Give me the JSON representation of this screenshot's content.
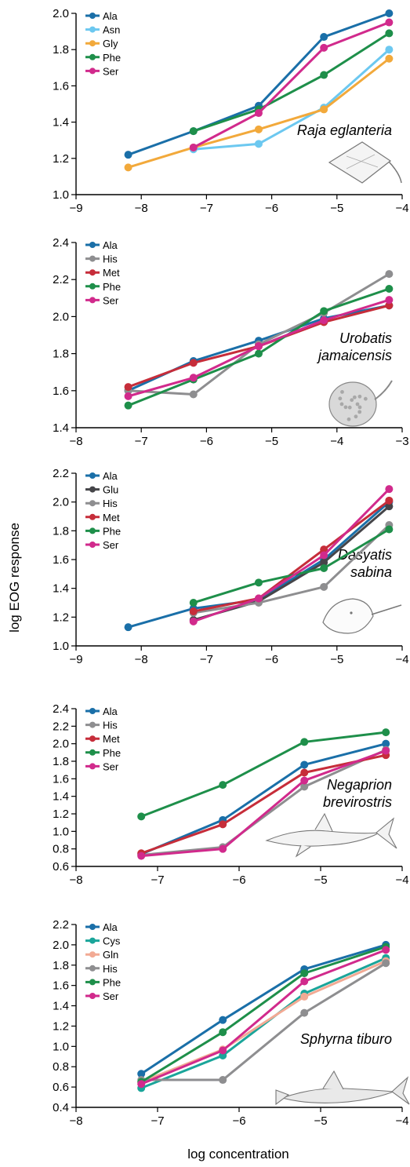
{
  "figure": {
    "ylabel": "log EOG response",
    "xlabel": "log concentration"
  },
  "colors": {
    "Ala": "#1a6fa8",
    "Asn": "#6cc8f0",
    "Gly": "#f2a93b",
    "Phe": "#1e8f4a",
    "Ser": "#d12a8c",
    "His": "#8e8e90",
    "Met": "#c62d3a",
    "Glu": "#454549",
    "Cys": "#1aa59a",
    "Gln": "#f2aa94"
  },
  "chart_data": [
    {
      "type": "line",
      "species": "Raja eglanteria",
      "icon": "skate-icon",
      "xlim": [
        -9,
        -4
      ],
      "ylim": [
        1.0,
        2.0
      ],
      "xticks": [
        "−9",
        "−8",
        "−7",
        "−6",
        "−5",
        "−4"
      ],
      "yticks": [
        "1.0",
        "1.2",
        "1.4",
        "1.6",
        "1.8",
        "2.0"
      ],
      "legend": [
        "Ala",
        "Asn",
        "Gly",
        "Phe",
        "Ser"
      ],
      "series": [
        {
          "name": "Ala",
          "x": [
            -8.2,
            -7.2,
            -6.2,
            -5.2,
            -4.2
          ],
          "y": [
            1.22,
            1.35,
            1.49,
            1.87,
            2.0
          ]
        },
        {
          "name": "Asn",
          "x": [
            -7.2,
            -6.2,
            -5.2,
            -4.2
          ],
          "y": [
            1.25,
            1.28,
            1.48,
            1.8
          ]
        },
        {
          "name": "Gly",
          "x": [
            -8.2,
            -7.2,
            -6.2,
            -5.2,
            -4.2
          ],
          "y": [
            1.15,
            1.26,
            1.36,
            1.47,
            1.75
          ]
        },
        {
          "name": "Phe",
          "x": [
            -7.2,
            -6.2,
            -5.2,
            -4.2
          ],
          "y": [
            1.35,
            1.47,
            1.66,
            1.89
          ]
        },
        {
          "name": "Ser",
          "x": [
            -7.2,
            -6.2,
            -5.2,
            -4.2
          ],
          "y": [
            1.26,
            1.45,
            1.81,
            1.95
          ]
        }
      ]
    },
    {
      "type": "line",
      "species": "Urobatis jamaicensis",
      "icon": "round-stingray-icon",
      "xlim": [
        -8,
        -3
      ],
      "ylim": [
        1.4,
        2.4
      ],
      "xticks": [
        "−8",
        "−7",
        "−6",
        "−5",
        "−4",
        "−3"
      ],
      "yticks": [
        "1.4",
        "1.6",
        "1.8",
        "2.0",
        "2.2",
        "2.4"
      ],
      "legend": [
        "Ala",
        "His",
        "Met",
        "Phe",
        "Ser"
      ],
      "series": [
        {
          "name": "Ala",
          "x": [
            -7.2,
            -6.2,
            -5.2,
            -4.2,
            -3.2
          ],
          "y": [
            1.6,
            1.76,
            1.87,
            1.99,
            2.06
          ]
        },
        {
          "name": "His",
          "x": [
            -7.2,
            -6.2,
            -5.2,
            -4.2,
            -3.2
          ],
          "y": [
            1.6,
            1.58,
            1.85,
            2.02,
            2.23
          ]
        },
        {
          "name": "Met",
          "x": [
            -7.2,
            -6.2,
            -5.2,
            -4.2,
            -3.2
          ],
          "y": [
            1.62,
            1.75,
            1.84,
            1.97,
            2.06
          ]
        },
        {
          "name": "Phe",
          "x": [
            -7.2,
            -6.2,
            -5.2,
            -4.2,
            -3.2
          ],
          "y": [
            1.52,
            1.66,
            1.8,
            2.03,
            2.15
          ]
        },
        {
          "name": "Ser",
          "x": [
            -7.2,
            -6.2,
            -5.2,
            -4.2,
            -3.2
          ],
          "y": [
            1.57,
            1.67,
            1.84,
            1.98,
            2.09
          ]
        }
      ]
    },
    {
      "type": "line",
      "species": "Dasyatis sabina",
      "icon": "stingray-icon",
      "xlim": [
        -9,
        -4
      ],
      "ylim": [
        1.0,
        2.2
      ],
      "xticks": [
        "−9",
        "−8",
        "−7",
        "−6",
        "−5",
        "−4"
      ],
      "yticks": [
        "1.0",
        "1.2",
        "1.4",
        "1.6",
        "1.8",
        "2.0",
        "2.2"
      ],
      "legend": [
        "Ala",
        "Glu",
        "His",
        "Met",
        "Phe",
        "Ser"
      ],
      "series": [
        {
          "name": "Ala",
          "x": [
            -8.2,
            -7.2,
            -6.2,
            -5.2,
            -4.2
          ],
          "y": [
            1.13,
            1.26,
            1.32,
            1.6,
            2.0
          ]
        },
        {
          "name": "Glu",
          "x": [
            -7.2,
            -6.2,
            -5.2,
            -4.2
          ],
          "y": [
            1.18,
            1.31,
            1.58,
            1.97
          ]
        },
        {
          "name": "His",
          "x": [
            -7.2,
            -6.2,
            -5.2,
            -4.2
          ],
          "y": [
            1.23,
            1.3,
            1.41,
            1.84
          ]
        },
        {
          "name": "Met",
          "x": [
            -7.2,
            -6.2,
            -5.2,
            -4.2
          ],
          "y": [
            1.24,
            1.33,
            1.67,
            2.01
          ]
        },
        {
          "name": "Phe",
          "x": [
            -7.2,
            -6.2,
            -5.2,
            -4.2
          ],
          "y": [
            1.3,
            1.44,
            1.54,
            1.81
          ]
        },
        {
          "name": "Ser",
          "x": [
            -7.2,
            -6.2,
            -5.2,
            -4.2
          ],
          "y": [
            1.17,
            1.33,
            1.63,
            2.09
          ]
        }
      ]
    },
    {
      "type": "line",
      "species": "Negaprion brevirostris",
      "icon": "lemon-shark-icon",
      "xlim": [
        -8,
        -4
      ],
      "ylim": [
        0.6,
        2.4
      ],
      "xticks": [
        "−8",
        "−7",
        "−6",
        "−5",
        "−4"
      ],
      "yticks": [
        "0.6",
        "0.8",
        "1.0",
        "1.2",
        "1.4",
        "1.6",
        "1.8",
        "2.0",
        "2.2",
        "2.4"
      ],
      "legend": [
        "Ala",
        "His",
        "Met",
        "Phe",
        "Ser"
      ],
      "series": [
        {
          "name": "Ala",
          "x": [
            -7.2,
            -6.2,
            -5.2,
            -4.2
          ],
          "y": [
            0.74,
            1.13,
            1.76,
            2.0
          ]
        },
        {
          "name": "His",
          "x": [
            -7.2,
            -6.2,
            -5.2,
            -4.2
          ],
          "y": [
            0.73,
            0.82,
            1.51,
            1.93
          ]
        },
        {
          "name": "Met",
          "x": [
            -7.2,
            -6.2,
            -5.2,
            -4.2
          ],
          "y": [
            0.75,
            1.08,
            1.67,
            1.87
          ]
        },
        {
          "name": "Phe",
          "x": [
            -7.2,
            -6.2,
            -5.2,
            -4.2
          ],
          "y": [
            1.17,
            1.53,
            2.02,
            2.13
          ]
        },
        {
          "name": "Ser",
          "x": [
            -7.2,
            -6.2,
            -5.2,
            -4.2
          ],
          "y": [
            0.72,
            0.8,
            1.58,
            1.92
          ]
        }
      ]
    },
    {
      "type": "line",
      "species": "Sphyrna tiburo",
      "icon": "hammerhead-shark-icon",
      "xlim": [
        -8,
        -4
      ],
      "ylim": [
        0.4,
        2.2
      ],
      "xticks": [
        "−8",
        "−7",
        "−6",
        "−5",
        "−4"
      ],
      "yticks": [
        "0.4",
        "0.6",
        "0.8",
        "1.0",
        "1.2",
        "1.4",
        "1.6",
        "1.8",
        "2.0",
        "2.2"
      ],
      "legend": [
        "Ala",
        "Cys",
        "Gln",
        "His",
        "Phe",
        "Ser"
      ],
      "series": [
        {
          "name": "Ala",
          "x": [
            -7.2,
            -6.2,
            -5.2,
            -4.2
          ],
          "y": [
            0.73,
            1.26,
            1.76,
            2.0
          ]
        },
        {
          "name": "Cys",
          "x": [
            -7.2,
            -6.2,
            -5.2,
            -4.2
          ],
          "y": [
            0.59,
            0.91,
            1.52,
            1.87
          ]
        },
        {
          "name": "Gln",
          "x": [
            -7.2,
            -6.2,
            -5.2,
            -4.2
          ],
          "y": [
            0.65,
            0.97,
            1.49,
            1.84
          ]
        },
        {
          "name": "His",
          "x": [
            -7.2,
            -6.2,
            -5.2,
            -4.2
          ],
          "y": [
            0.67,
            0.67,
            1.33,
            1.82
          ]
        },
        {
          "name": "Phe",
          "x": [
            -7.2,
            -6.2,
            -5.2,
            -4.2
          ],
          "y": [
            0.65,
            1.14,
            1.72,
            1.98
          ]
        },
        {
          "name": "Ser",
          "x": [
            -7.2,
            -6.2,
            -5.2,
            -4.2
          ],
          "y": [
            0.63,
            0.96,
            1.64,
            1.95
          ]
        }
      ]
    }
  ]
}
